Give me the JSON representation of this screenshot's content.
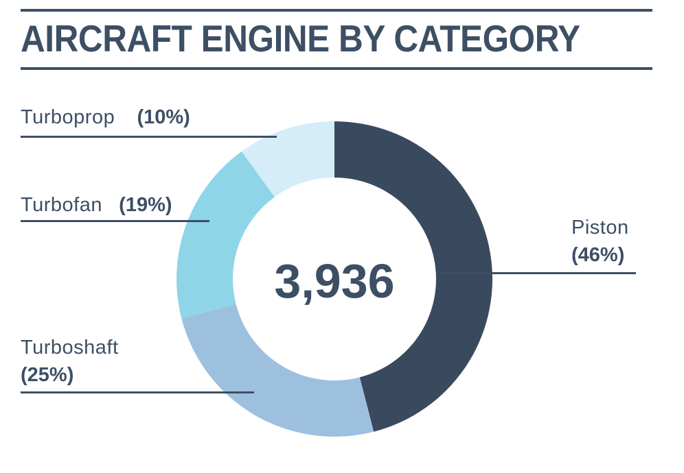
{
  "chart_data": {
    "type": "pie",
    "title": "AIRCRAFT ENGINE BY CATEGORY",
    "center_total": "3,936",
    "categories": [
      "Piston",
      "Turboshaft",
      "Turbofan",
      "Turboprop"
    ],
    "values": [
      46,
      25,
      19,
      10
    ],
    "value_labels": [
      "(46%)",
      "(25%)",
      "(19%)",
      "(10%)"
    ],
    "colors": [
      "#3a4a5e",
      "#9ec0df",
      "#8fd5e8",
      "#d4edf9"
    ],
    "donut": true
  }
}
